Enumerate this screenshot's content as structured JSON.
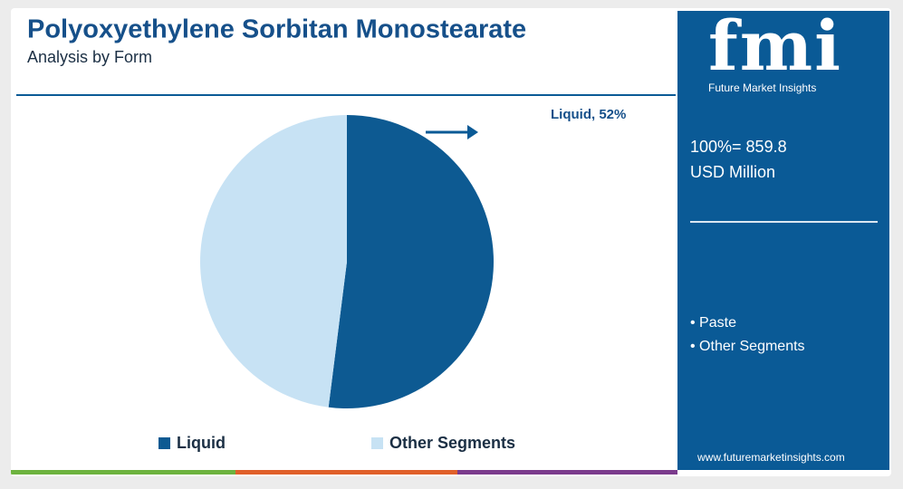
{
  "chart_data": {
    "type": "pie",
    "title": "Polyoxyethylene Sorbitan Monostearate",
    "subtitle": "Analysis by Form",
    "categories": [
      "Liquid",
      "Other Segments"
    ],
    "values": [
      52,
      48
    ],
    "value_labels": [
      "Liquid, 52%",
      null
    ],
    "colors": [
      "#0d5a92",
      "#c7e2f4"
    ],
    "legend": "bottom"
  },
  "panel": {
    "logo": "fmi",
    "tagline": "Future Market Insights",
    "total": "100%= 859.8",
    "unit": "USD Million",
    "items": [
      "Paste",
      "Other Segments"
    ],
    "url": "www.futuremarketinsights.com"
  }
}
